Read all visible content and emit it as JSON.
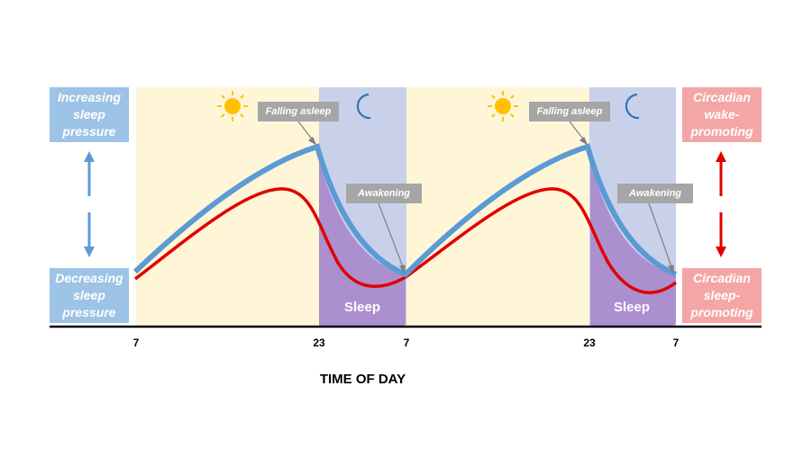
{
  "chart_data": {
    "type": "line",
    "xlabel": "TIME OF DAY",
    "x_ticks": [
      "7",
      "23",
      "7",
      "23",
      "7"
    ],
    "phases": [
      "day",
      "night",
      "day",
      "night"
    ],
    "series": [
      {
        "color": "#5b9bd5"
      },
      {
        "color": "#e00000"
      }
    ]
  },
  "labels": {
    "left_top": "Increasing\nsleep\npressure",
    "left_bottom": "Decreasing\nsleep\npressure",
    "right_top": "Circadian\nwake-\npromoting",
    "right_bottom": "Circadian\nsleep-\npromoting",
    "falling_asleep": "Falling asleep",
    "awakening": "Awakening",
    "sleep": "Sleep"
  },
  "icons": [
    "sun-icon",
    "moon-icon"
  ],
  "colors": {
    "day_bg": "#fff6d8",
    "night_bg": "#c9d1ea",
    "sleep_fill": "#ab8fcf",
    "homeostatic": "#5b9bd5",
    "circadian": "#e00000",
    "box_blue": "#9dc3e6",
    "box_pink": "#f4a6a6",
    "callout": "#a6a6a6"
  }
}
